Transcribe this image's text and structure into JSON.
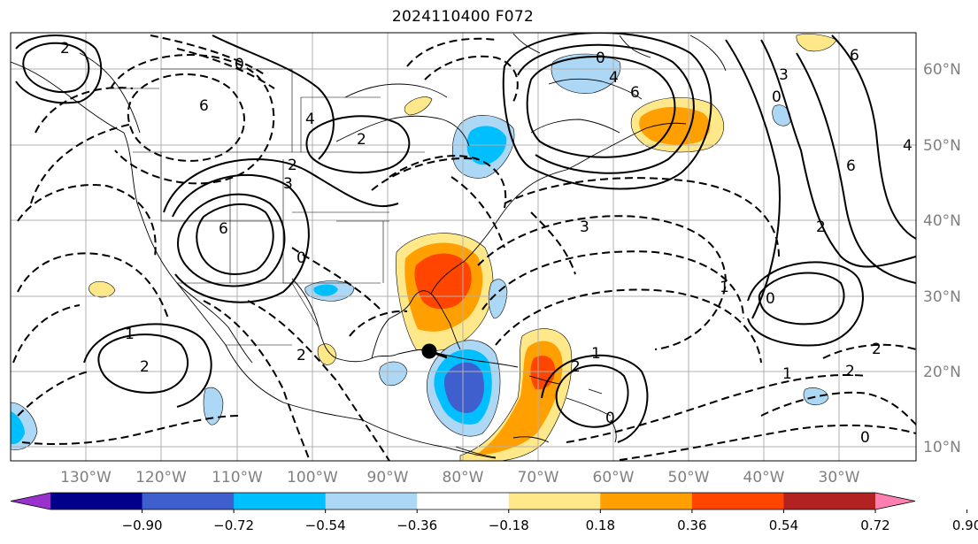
{
  "title": "2024110400 F072",
  "lat_ticks": [
    "60°N",
    "50°N",
    "40°N",
    "30°N",
    "20°N",
    "10°N"
  ],
  "lon_ticks": [
    "130°W",
    "120°W",
    "110°W",
    "100°W",
    "90°W",
    "80°W",
    "70°W",
    "60°W",
    "50°W",
    "40°W",
    "30°W"
  ],
  "colorbar": {
    "tick_labels": [
      "−0.90",
      "−0.72",
      "−0.54",
      "−0.36",
      "−0.18",
      "0.18",
      "0.36",
      "0.54",
      "0.72",
      "0.90"
    ],
    "colors": [
      "#9932cc",
      "#00008b",
      "#3f5fcf",
      "#00bfff",
      "#add8f5",
      "#ffffff",
      "#ffe88a",
      "#ffa000",
      "#ff4500",
      "#b22222",
      "#ff80b0"
    ]
  },
  "contour_labels": {
    "a": "2",
    "b": "0",
    "c": "6",
    "d": "4",
    "e": "2",
    "f": "0",
    "g": "6",
    "h": "4",
    "i": "3",
    "j": "0",
    "k": "6",
    "l": "2",
    "m": "1",
    "n": "2",
    "o": "3",
    "p": "6",
    "q": "2",
    "r": "0",
    "s": "1",
    "t": "2",
    "u": "1",
    "v": "0",
    "w": "1",
    "x": "2",
    "y": "0",
    "z": "2",
    "aa": "3",
    "ab": "4",
    "ac": "6",
    "ad": "0",
    "ae": "2"
  },
  "marker": "storm-center"
}
